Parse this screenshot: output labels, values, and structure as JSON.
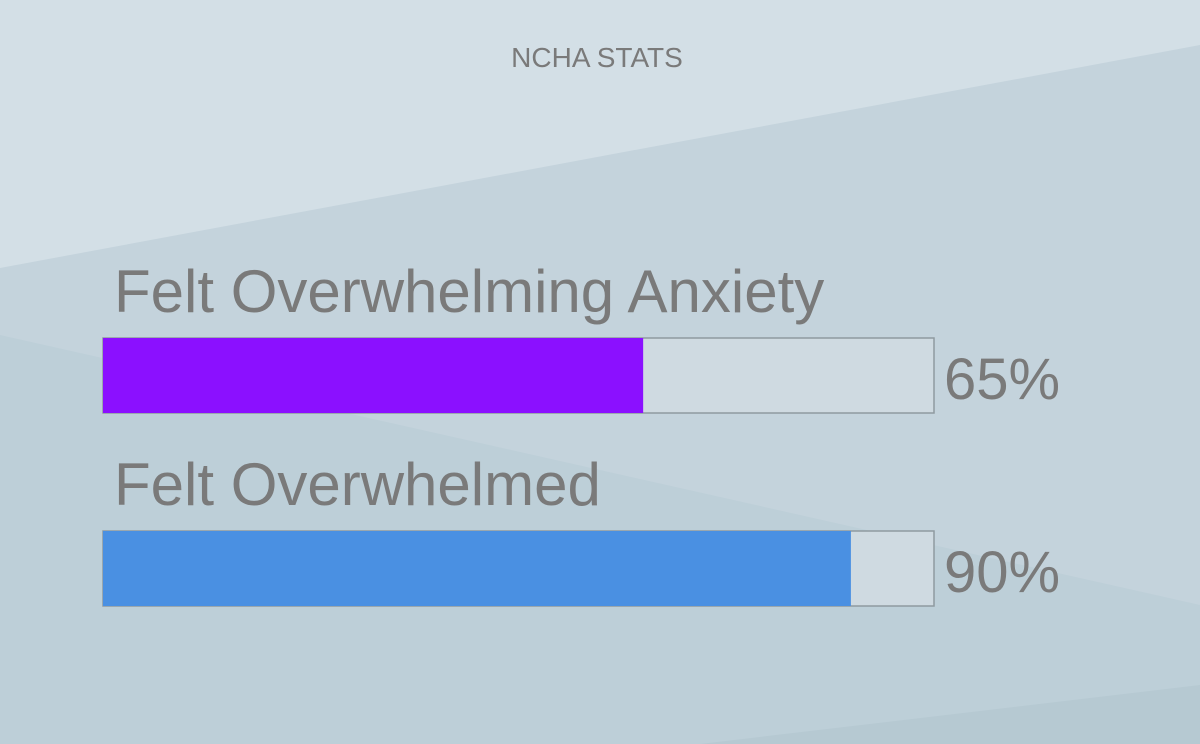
{
  "chart_data": {
    "type": "progress",
    "title": "NCHA STATS",
    "categories": [
      "Felt Overwhelming Anxiety",
      "Felt Overwhelmed"
    ],
    "values": [
      65,
      90
    ],
    "value_labels": [
      "65%",
      "90%"
    ],
    "colors": [
      "#8b10ff",
      "#4a90e2"
    ],
    "xlim": [
      0,
      100
    ]
  }
}
